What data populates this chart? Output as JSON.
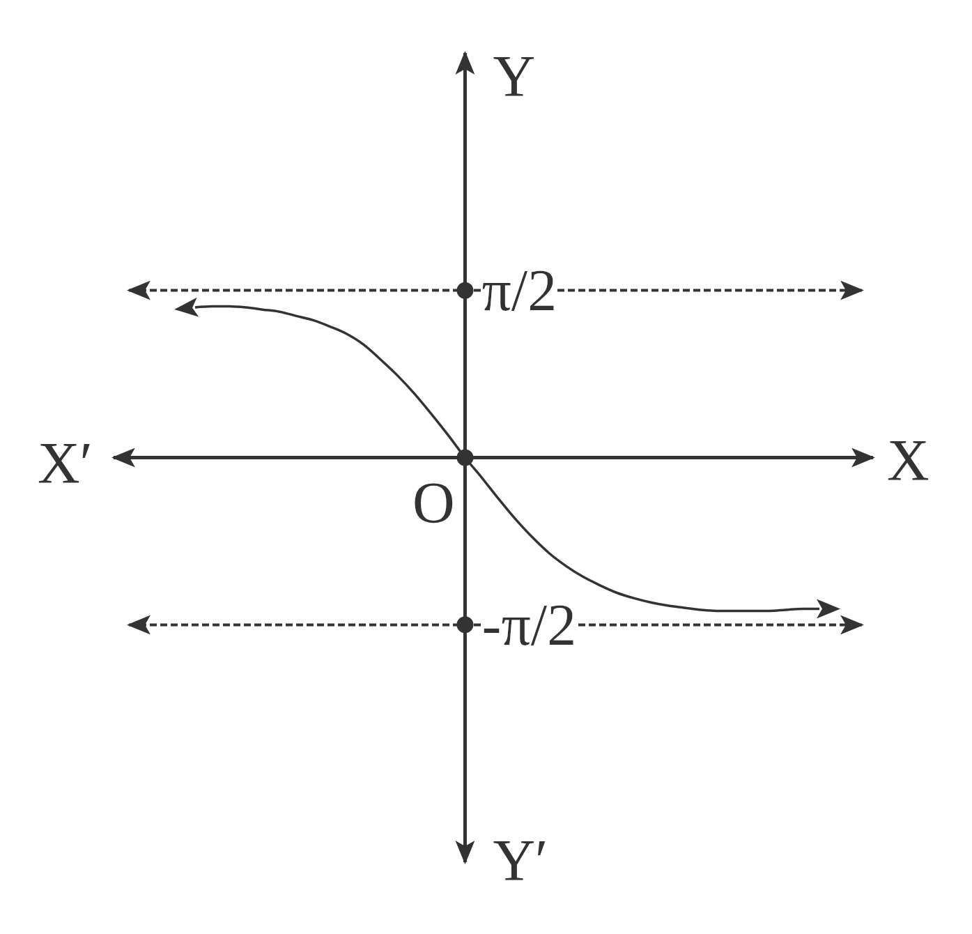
{
  "chart_data": {
    "type": "line",
    "categories": [
      null,
      null,
      null,
      null,
      null,
      null,
      null,
      null,
      null,
      null,
      null,
      null,
      null,
      null,
      null,
      null,
      null,
      null,
      null,
      null,
      null,
      null,
      null,
      null,
      null,
      null,
      null,
      null,
      null,
      null,
      null,
      null,
      null,
      null,
      null,
      null,
      null,
      null
    ],
    "series": [
      {
        "color": "#333333",
        "values": [
          1.41,
          1.42,
          1.42,
          1.41,
          1.39,
          1.37,
          1.33,
          1.29,
          1.23,
          1.16,
          1.06,
          0.92,
          0.77,
          0.6,
          0.41,
          0.21,
          0,
          -0.19,
          -0.39,
          -0.58,
          -0.75,
          -0.9,
          -1.02,
          -1.12,
          -1.2,
          -1.27,
          -1.32,
          -1.36,
          -1.39,
          -1.41,
          -1.43,
          -1.44,
          -1.44,
          -1.44,
          -1.44,
          -1.43,
          -1.42,
          -1.42
        ]
      },
      {
        "type": "scatter",
        "marker": "circle",
        "color": "#333333",
        "values": [
          null,
          null,
          null,
          null,
          null,
          null,
          null,
          null,
          null,
          null,
          null,
          null,
          null,
          null,
          null,
          null,
          1.57,
          null,
          null,
          null,
          null,
          null,
          null,
          null,
          null,
          null,
          null,
          null,
          null,
          null,
          null,
          null,
          null,
          null,
          null,
          null,
          null,
          null
        ]
      },
      {
        "type": "scatter",
        "marker": "circle",
        "color": "#333333",
        "values": [
          null,
          null,
          null,
          null,
          null,
          null,
          null,
          null,
          null,
          null,
          null,
          null,
          null,
          null,
          null,
          null,
          0,
          null,
          null,
          null,
          null,
          null,
          null,
          null,
          null,
          null,
          null,
          null,
          null,
          null,
          null,
          null,
          null,
          null,
          null,
          null,
          null,
          null
        ]
      },
      {
        "type": "scatter",
        "marker": "circle",
        "color": "#333333",
        "values": [
          null,
          null,
          null,
          null,
          null,
          null,
          null,
          null,
          null,
          null,
          null,
          null,
          null,
          null,
          null,
          null,
          -1.57,
          null,
          null,
          null,
          null,
          null,
          null,
          null,
          null,
          null,
          null,
          null,
          null,
          null,
          null,
          null,
          null,
          null,
          null,
          null,
          null,
          null
        ]
      }
    ],
    "ylim": [
      -3.8,
      3.8
    ],
    "yticks": [
      {
        "value": 1.5708,
        "label": "π/2"
      },
      {
        "value": -1.5708,
        "label": "-π/2"
      }
    ],
    "xlabel": "X",
    "ylabel": "Y",
    "annotations": [
      "X′",
      "Y′",
      "O"
    ],
    "grid": "y",
    "marker": "none",
    "line_style": "solid",
    "tick_labels": "y"
  }
}
